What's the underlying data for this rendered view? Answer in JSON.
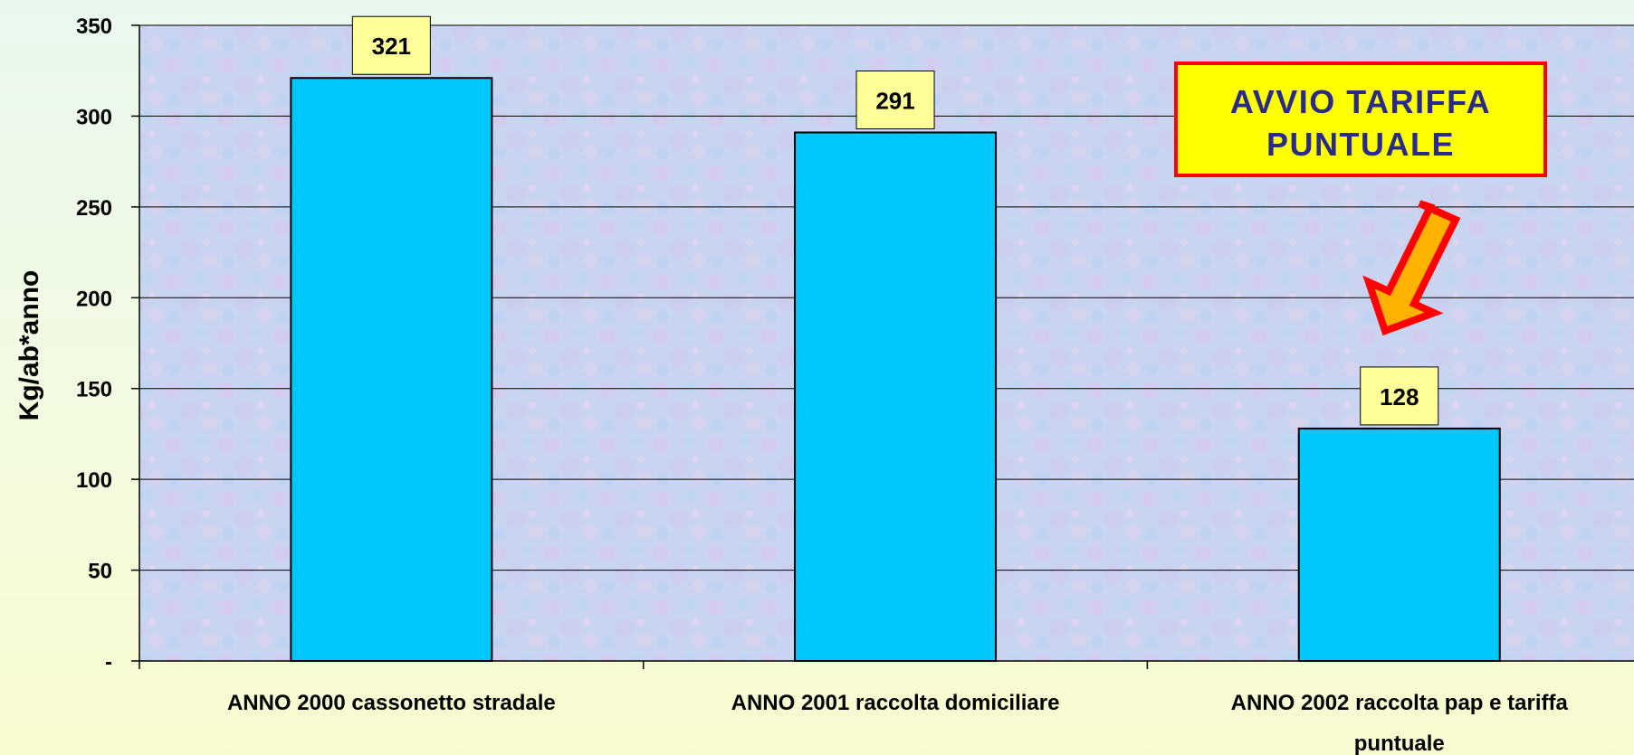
{
  "chart_data": {
    "type": "bar",
    "categories": [
      [
        "ANNO 2000 cassonetto stradale"
      ],
      [
        "ANNO 2001 raccolta domiciliare"
      ],
      [
        "ANNO 2002 raccolta pap e tariffa",
        "puntuale"
      ]
    ],
    "values": [
      321,
      291,
      128
    ],
    "value_labels": [
      "321",
      "291",
      "128"
    ],
    "ylabel": "Kg/ab*anno",
    "ylim": [
      0,
      350
    ],
    "yticks": [
      {
        "value": 0,
        "label": "-"
      },
      {
        "value": 50,
        "label": "50"
      },
      {
        "value": 100,
        "label": "100"
      },
      {
        "value": 150,
        "label": "150"
      },
      {
        "value": 200,
        "label": "200"
      },
      {
        "value": 250,
        "label": "250"
      },
      {
        "value": 300,
        "label": "300"
      },
      {
        "value": 350,
        "label": "350"
      }
    ],
    "grid": true,
    "legend": "none",
    "bar_color": "#00c8fa",
    "label_box_color": "#ffff99",
    "annotation": {
      "lines": [
        "AVVIO TARIFFA",
        "PUNTUALE"
      ],
      "text_color": "#2a2a8a",
      "box_color": "#ffff00",
      "border_color": "#ff0000",
      "arrow_fill": "#ffb300",
      "arrow_stroke": "#ff0000"
    }
  }
}
